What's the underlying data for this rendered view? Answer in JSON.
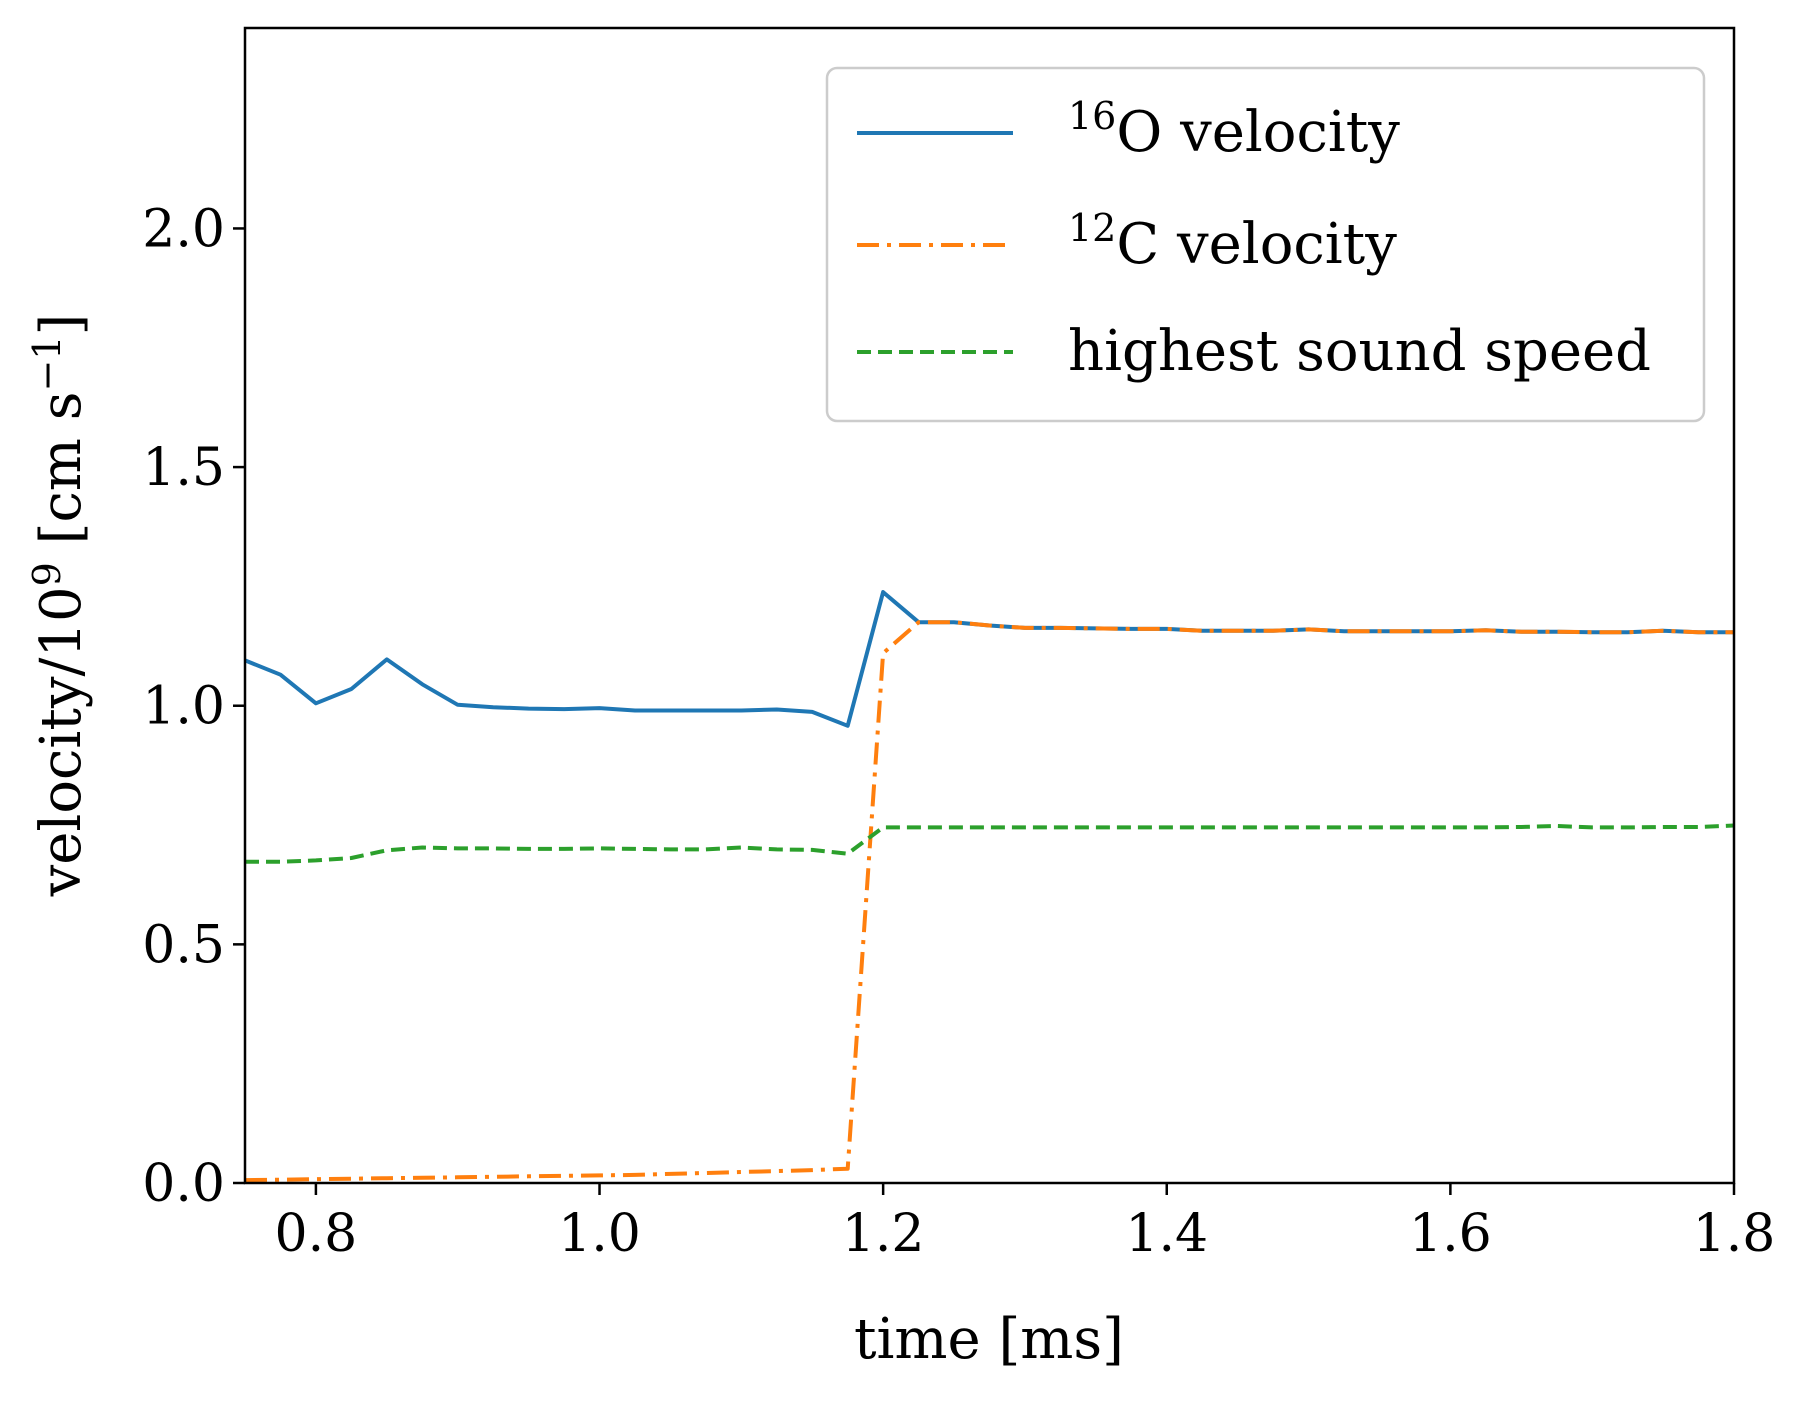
{
  "chart_data": {
    "type": "line",
    "title": "",
    "xlabel": "time [ms]",
    "ylabel": "velocity/10⁹ [cm s⁻¹]",
    "ylabel_parts": {
      "prefix": "velocity/10",
      "exp": "9",
      "mid": " [cm s",
      "exp2": "−1",
      "suffix": "]"
    },
    "xlim": [
      0.75,
      1.8
    ],
    "ylim": [
      0.0,
      2.42
    ],
    "xticks": [
      0.8,
      1.0,
      1.2,
      1.4,
      1.6,
      1.8
    ],
    "xtick_labels": [
      "0.8",
      "1.0",
      "1.2",
      "1.4",
      "1.6",
      "1.8"
    ],
    "yticks": [
      0.0,
      0.5,
      1.0,
      1.5,
      2.0
    ],
    "ytick_labels": [
      "0.0",
      "0.5",
      "1.0",
      "1.5",
      "2.0"
    ],
    "grid": false,
    "legend_position": "top-right",
    "series": [
      {
        "name": "¹⁶O velocity",
        "label_sup": "16",
        "label_base": "O velocity",
        "color": "#1f77b4",
        "dash": "solid",
        "x": [
          0.75,
          0.775,
          0.8,
          0.825,
          0.85,
          0.875,
          0.9,
          0.925,
          0.95,
          0.975,
          1.0,
          1.025,
          1.05,
          1.075,
          1.1,
          1.125,
          1.15,
          1.175,
          1.2,
          1.225,
          1.25,
          1.275,
          1.3,
          1.325,
          1.35,
          1.375,
          1.4,
          1.425,
          1.45,
          1.475,
          1.5,
          1.525,
          1.55,
          1.575,
          1.6,
          1.625,
          1.65,
          1.675,
          1.7,
          1.725,
          1.75,
          1.775,
          1.8
        ],
        "y": [
          1.095,
          1.065,
          1.005,
          1.035,
          1.097,
          1.045,
          1.002,
          0.997,
          0.994,
          0.993,
          0.995,
          0.99,
          0.99,
          0.99,
          0.99,
          0.992,
          0.987,
          0.958,
          1.238,
          1.175,
          1.175,
          1.168,
          1.163,
          1.163,
          1.162,
          1.161,
          1.161,
          1.157,
          1.157,
          1.157,
          1.16,
          1.156,
          1.156,
          1.156,
          1.156,
          1.158,
          1.155,
          1.155,
          1.154,
          1.154,
          1.157,
          1.154,
          1.154
        ]
      },
      {
        "name": "¹²C velocity",
        "label_sup": "12",
        "label_base": "C velocity",
        "color": "#ff7f0e",
        "dash": "dashdot",
        "x": [
          0.75,
          0.775,
          0.8,
          0.825,
          0.85,
          0.875,
          0.9,
          0.925,
          0.95,
          0.975,
          1.0,
          1.025,
          1.05,
          1.075,
          1.1,
          1.125,
          1.15,
          1.175,
          1.2,
          1.225,
          1.25,
          1.275,
          1.3,
          1.325,
          1.35,
          1.375,
          1.4,
          1.425,
          1.45,
          1.475,
          1.5,
          1.525,
          1.55,
          1.575,
          1.6,
          1.625,
          1.65,
          1.675,
          1.7,
          1.725,
          1.75,
          1.775,
          1.8
        ],
        "y": [
          0.006,
          0.007,
          0.008,
          0.009,
          0.01,
          0.011,
          0.012,
          0.013,
          0.014,
          0.015,
          0.016,
          0.017,
          0.019,
          0.021,
          0.023,
          0.025,
          0.027,
          0.03,
          1.11,
          1.175,
          1.175,
          1.168,
          1.163,
          1.163,
          1.162,
          1.161,
          1.161,
          1.157,
          1.157,
          1.157,
          1.16,
          1.156,
          1.156,
          1.156,
          1.156,
          1.158,
          1.155,
          1.155,
          1.154,
          1.154,
          1.157,
          1.154,
          1.154
        ]
      },
      {
        "name": "highest sound speed",
        "label_sup": "",
        "label_base": "highest sound speed",
        "color": "#2ca02c",
        "dash": "dashed",
        "x": [
          0.75,
          0.775,
          0.8,
          0.825,
          0.85,
          0.875,
          0.9,
          0.925,
          0.95,
          0.975,
          1.0,
          1.025,
          1.05,
          1.075,
          1.1,
          1.125,
          1.15,
          1.175,
          1.2,
          1.225,
          1.25,
          1.275,
          1.3,
          1.325,
          1.35,
          1.375,
          1.4,
          1.425,
          1.45,
          1.475,
          1.5,
          1.525,
          1.55,
          1.575,
          1.6,
          1.625,
          1.65,
          1.675,
          1.7,
          1.725,
          1.75,
          1.775,
          1.8
        ],
        "y": [
          0.673,
          0.673,
          0.676,
          0.681,
          0.697,
          0.703,
          0.701,
          0.701,
          0.7,
          0.7,
          0.701,
          0.7,
          0.699,
          0.699,
          0.703,
          0.699,
          0.698,
          0.69,
          0.745,
          0.745,
          0.745,
          0.745,
          0.745,
          0.745,
          0.745,
          0.745,
          0.745,
          0.745,
          0.745,
          0.745,
          0.745,
          0.745,
          0.745,
          0.745,
          0.745,
          0.745,
          0.746,
          0.748,
          0.745,
          0.745,
          0.746,
          0.746,
          0.749
        ]
      }
    ]
  }
}
